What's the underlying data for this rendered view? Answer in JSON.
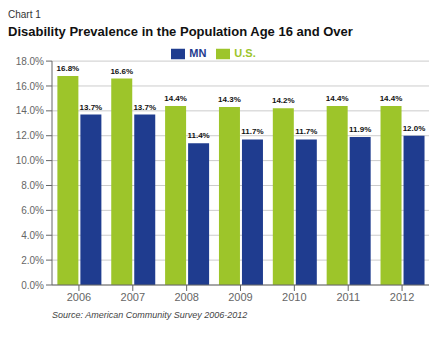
{
  "chart_data": {
    "type": "bar",
    "subtitle": "Chart 1",
    "title": "Disability Prevalence in the Population Age 16 and Over",
    "annotations": [
      "Source: American Community Survey 2006-2012"
    ],
    "categories": [
      "2006",
      "2007",
      "2008",
      "2009",
      "2010",
      "2011",
      "2012"
    ],
    "series": [
      {
        "name": "U.S.",
        "color": "#9dc52a",
        "values": [
          16.8,
          16.6,
          14.4,
          14.3,
          14.2,
          14.4,
          14.4
        ],
        "value_labels": [
          "16.8%",
          "16.6%",
          "14.4%",
          "14.3%",
          "14.2%",
          "14.4%",
          "14.4%"
        ]
      },
      {
        "name": "MN",
        "color": "#1f3c8f",
        "values": [
          13.7,
          13.7,
          11.4,
          11.7,
          11.7,
          11.9,
          12.0
        ],
        "value_labels": [
          "13.7%",
          "13.7%",
          "11.4%",
          "11.7%",
          "11.7%",
          "11.9%",
          "12.0%"
        ]
      }
    ],
    "ylim": [
      0,
      18.0
    ],
    "yticks": [
      {
        "value": 0.0,
        "label": "0.0%"
      },
      {
        "value": 2.0,
        "label": "2.0%"
      },
      {
        "value": 4.0,
        "label": "4.0%"
      },
      {
        "value": 6.0,
        "label": "6.0%"
      },
      {
        "value": 8.0,
        "label": "8.0%"
      },
      {
        "value": 10.0,
        "label": "10.0%"
      },
      {
        "value": 12.0,
        "label": "12.0%"
      },
      {
        "value": 14.0,
        "label": "14.0%"
      },
      {
        "value": 16.0,
        "label": "16.0%"
      },
      {
        "value": 18.0,
        "label": "18.0%"
      }
    ],
    "grid": true,
    "legend": "top",
    "data_labels": true
  }
}
